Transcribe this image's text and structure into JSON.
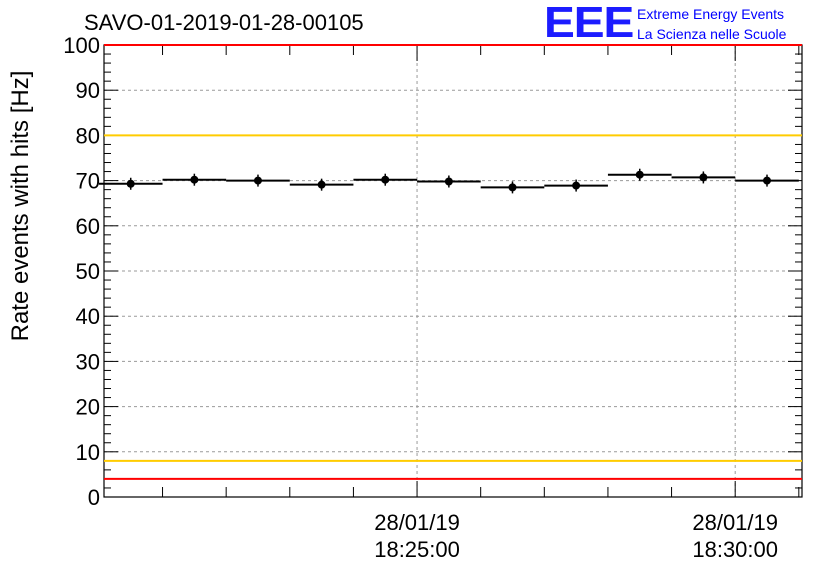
{
  "chart_data": {
    "type": "scatter",
    "title": "SAVO-01-2019-01-28-00105",
    "ylabel": "Rate events with hits [Hz]",
    "xlabel": "",
    "ylim": [
      0,
      100
    ],
    "yticks": [
      0,
      10,
      20,
      30,
      40,
      50,
      60,
      70,
      80,
      90,
      100
    ],
    "grid": true,
    "x_ticks": [
      {
        "date": "28/01/19",
        "time": "18:25:00",
        "minutes": 0
      },
      {
        "date": "28/01/19",
        "time": "18:30:00",
        "minutes": 5
      }
    ],
    "xlim_minutes": [
      -4.92,
      6.05
    ],
    "points": [
      {
        "x_minutes": -4.5,
        "x_halfwidth": 0.5,
        "y": 69.3
      },
      {
        "x_minutes": -3.5,
        "x_halfwidth": 0.5,
        "y": 70.2
      },
      {
        "x_minutes": -2.5,
        "x_halfwidth": 0.5,
        "y": 70.0
      },
      {
        "x_minutes": -1.5,
        "x_halfwidth": 0.5,
        "y": 69.1
      },
      {
        "x_minutes": -0.5,
        "x_halfwidth": 0.5,
        "y": 70.2
      },
      {
        "x_minutes": 0.5,
        "x_halfwidth": 0.5,
        "y": 69.8
      },
      {
        "x_minutes": 1.5,
        "x_halfwidth": 0.5,
        "y": 68.5
      },
      {
        "x_minutes": 2.5,
        "x_halfwidth": 0.5,
        "y": 68.9
      },
      {
        "x_minutes": 3.5,
        "x_halfwidth": 0.5,
        "y": 71.3
      },
      {
        "x_minutes": 4.5,
        "x_halfwidth": 0.5,
        "y": 70.7
      },
      {
        "x_minutes": 5.5,
        "x_halfwidth": 0.5,
        "y": 70.0
      }
    ],
    "reference_lines": [
      {
        "name": "upper-red-limit",
        "y": 100,
        "color": "#ff0000"
      },
      {
        "name": "upper-yellow-limit",
        "y": 80,
        "color": "#ffcc00"
      },
      {
        "name": "lower-yellow-limit",
        "y": 8,
        "color": "#ffcc00"
      },
      {
        "name": "lower-red-limit",
        "y": 4,
        "color": "#ff0000"
      }
    ]
  },
  "logo": {
    "mark": "EEE",
    "line1": "Extreme Energy Events",
    "line2": "La Scienza nelle Scuole",
    "color": "#0000ff"
  }
}
